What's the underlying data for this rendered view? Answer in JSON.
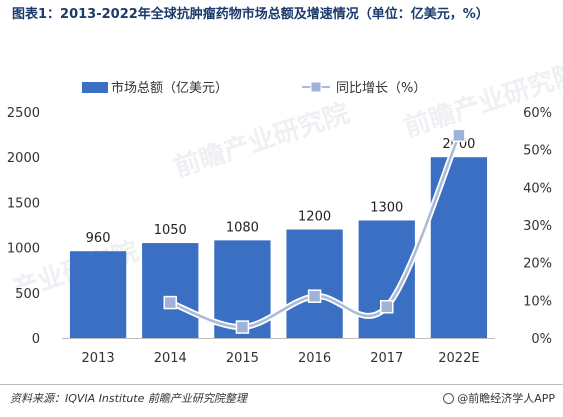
{
  "title": "图表1：2013-2022年全球抗肿瘤药物市场总额及增速情况（单位：亿美元，%）",
  "source": "资料来源：IQVIA Institute 前瞻产业研究院整理",
  "brand": "@前瞻经济学人APP",
  "watermarks": [
    "前瞻产业研究院",
    "前瞻产业研究院",
    "产业研究院"
  ],
  "chart_data": {
    "type": "bar",
    "categories": [
      "2013",
      "2014",
      "2015",
      "2016",
      "2017",
      "2022E"
    ],
    "series": [
      {
        "name": "市场总额（亿美元）",
        "type": "bar",
        "axis": "left",
        "values": [
          960,
          1050,
          1080,
          1200,
          1300,
          2000
        ],
        "labels": [
          "960",
          "1050",
          "1080",
          "1200",
          "1300",
          "2000"
        ]
      },
      {
        "name": "同比增长（%）",
        "type": "line",
        "axis": "right",
        "values": [
          null,
          9.4,
          2.9,
          11.1,
          8.3,
          53.8
        ]
      }
    ],
    "y_left": {
      "min": 0,
      "max": 2500,
      "ticks": [
        "0",
        "500",
        "1000",
        "1500",
        "2000",
        "2500"
      ]
    },
    "y_right": {
      "min": 0,
      "max": 60,
      "ticks": [
        "0%",
        "10%",
        "20%",
        "30%",
        "40%",
        "50%",
        "60%"
      ]
    },
    "legend_position": "top",
    "grid": false,
    "colors": {
      "bar": "#3a6fc4",
      "line": "#a9bbd8",
      "marker": "#9fb3d9",
      "marker_border": "#ffffff"
    }
  }
}
